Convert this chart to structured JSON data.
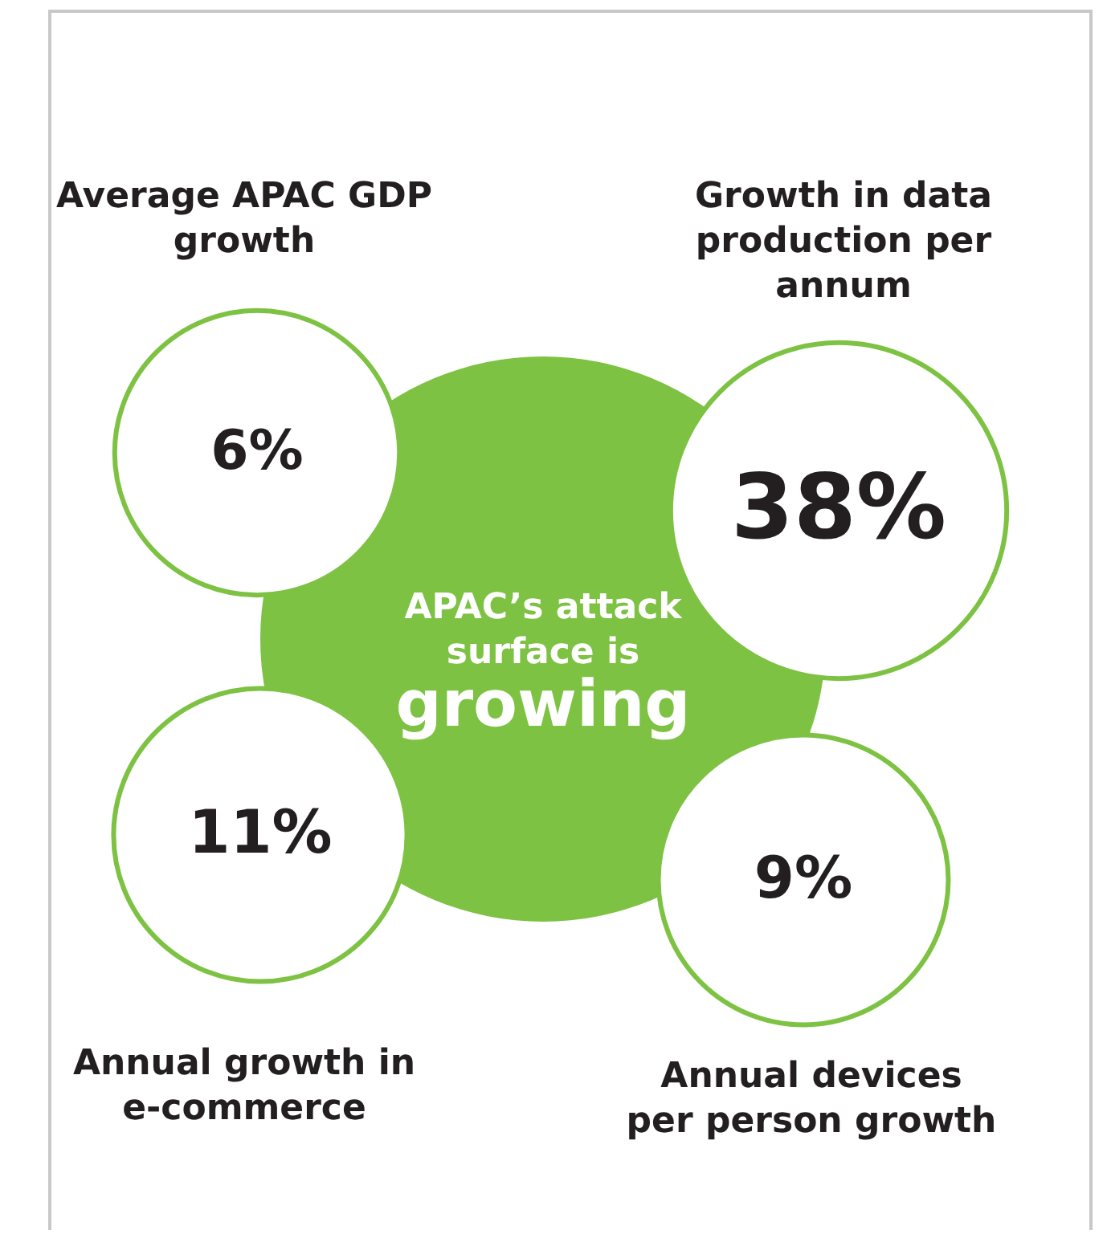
{
  "chart_data": {
    "type": "other",
    "title": "APAC’s attack surface is",
    "subtitle": "growing",
    "categories": [
      "Average APAC GDP growth",
      "Growth in data production per annum",
      "Annual growth in e-commerce",
      "Annual devices per person growth"
    ],
    "values": [
      6,
      38,
      11,
      9
    ],
    "value_labels": [
      "6%",
      "38%",
      "11%",
      "9%"
    ],
    "color": "#7dc242"
  }
}
